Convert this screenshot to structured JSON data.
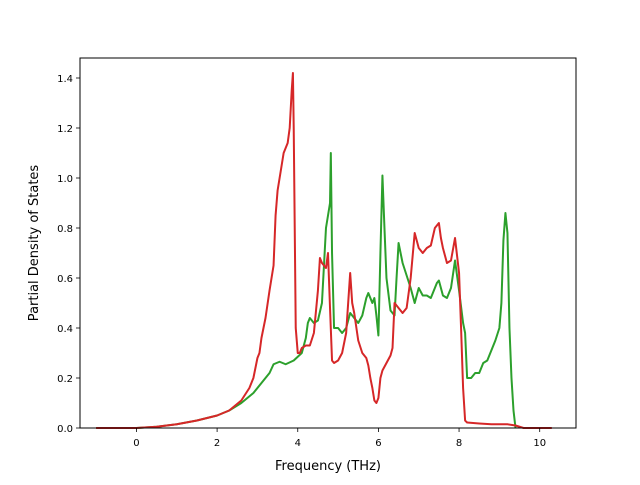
{
  "chart_data": {
    "type": "line",
    "xlabel": "Frequency (THz)",
    "ylabel": "Partial Density of States",
    "xlim": [
      -1.4,
      10.9
    ],
    "ylim": [
      0,
      1.48
    ],
    "xticks": [
      0,
      2,
      4,
      6,
      8,
      10
    ],
    "yticks": [
      0.0,
      0.2,
      0.4,
      0.6,
      0.8,
      1.0,
      1.2,
      1.4
    ],
    "xtick_labels": [
      "0",
      "2",
      "4",
      "6",
      "8",
      "10"
    ],
    "ytick_labels": [
      "0.0",
      "0.2",
      "0.4",
      "0.6",
      "0.8",
      "1.0",
      "1.2",
      "1.4"
    ],
    "grid": false,
    "series": [
      {
        "color": "#2ca02c",
        "x": [
          -1.0,
          -0.5,
          0.0,
          0.5,
          1.0,
          1.5,
          2.0,
          2.3,
          2.6,
          2.9,
          3.1,
          3.3,
          3.4,
          3.55,
          3.7,
          3.9,
          4.1,
          4.2,
          4.25,
          4.3,
          4.4,
          4.5,
          4.6,
          4.65,
          4.7,
          4.75,
          4.8,
          4.82,
          4.85,
          4.9,
          5.0,
          5.1,
          5.2,
          5.3,
          5.4,
          5.5,
          5.6,
          5.7,
          5.75,
          5.8,
          5.85,
          5.9,
          5.95,
          6.0,
          6.05,
          6.1,
          6.15,
          6.2,
          6.3,
          6.4,
          6.45,
          6.5,
          6.6,
          6.8,
          6.9,
          7.0,
          7.1,
          7.2,
          7.3,
          7.45,
          7.5,
          7.6,
          7.7,
          7.8,
          7.9,
          8.0,
          8.1,
          8.15,
          8.2,
          8.3,
          8.4,
          8.5,
          8.6,
          8.7,
          8.8,
          8.9,
          9.0,
          9.05,
          9.1,
          9.15,
          9.2,
          9.25,
          9.3,
          9.35,
          9.4
        ],
        "y": [
          0.0,
          0.0,
          0.0,
          0.005,
          0.015,
          0.03,
          0.05,
          0.07,
          0.1,
          0.14,
          0.18,
          0.22,
          0.255,
          0.265,
          0.255,
          0.27,
          0.3,
          0.36,
          0.42,
          0.44,
          0.42,
          0.43,
          0.5,
          0.65,
          0.8,
          0.85,
          0.9,
          1.1,
          0.7,
          0.4,
          0.4,
          0.38,
          0.4,
          0.46,
          0.44,
          0.42,
          0.45,
          0.52,
          0.54,
          0.52,
          0.5,
          0.52,
          0.45,
          0.37,
          0.7,
          1.01,
          0.8,
          0.6,
          0.47,
          0.45,
          0.6,
          0.74,
          0.66,
          0.56,
          0.5,
          0.56,
          0.53,
          0.53,
          0.52,
          0.58,
          0.59,
          0.53,
          0.52,
          0.56,
          0.67,
          0.55,
          0.42,
          0.38,
          0.2,
          0.2,
          0.22,
          0.22,
          0.26,
          0.27,
          0.31,
          0.35,
          0.4,
          0.5,
          0.75,
          0.86,
          0.78,
          0.4,
          0.2,
          0.07,
          0.0
        ]
      },
      {
        "color": "#d62728",
        "x": [
          -1.0,
          -0.5,
          0.0,
          0.5,
          1.0,
          1.5,
          2.0,
          2.3,
          2.6,
          2.8,
          2.9,
          3.0,
          3.05,
          3.1,
          3.2,
          3.3,
          3.4,
          3.45,
          3.5,
          3.55,
          3.6,
          3.65,
          3.7,
          3.75,
          3.8,
          3.85,
          3.88,
          3.9,
          3.95,
          4.0,
          4.05,
          4.1,
          4.2,
          4.3,
          4.4,
          4.5,
          4.55,
          4.6,
          4.7,
          4.75,
          4.8,
          4.85,
          4.9,
          5.0,
          5.1,
          5.2,
          5.3,
          5.35,
          5.4,
          5.5,
          5.6,
          5.7,
          5.75,
          5.8,
          5.85,
          5.9,
          5.95,
          6.0,
          6.05,
          6.1,
          6.2,
          6.3,
          6.35,
          6.4,
          6.5,
          6.6,
          6.7,
          6.8,
          6.9,
          7.0,
          7.1,
          7.2,
          7.3,
          7.4,
          7.5,
          7.55,
          7.6,
          7.7,
          7.8,
          7.9,
          8.0,
          8.05,
          8.1,
          8.15,
          8.2,
          8.5,
          8.8,
          9.0,
          9.2,
          9.4,
          9.6,
          9.8,
          10.0,
          10.3
        ],
        "y": [
          0.0,
          0.0,
          0.0,
          0.005,
          0.015,
          0.03,
          0.05,
          0.07,
          0.11,
          0.16,
          0.2,
          0.28,
          0.3,
          0.36,
          0.44,
          0.55,
          0.65,
          0.85,
          0.95,
          1.0,
          1.05,
          1.1,
          1.12,
          1.14,
          1.2,
          1.35,
          1.42,
          1.2,
          0.4,
          0.3,
          0.3,
          0.32,
          0.33,
          0.33,
          0.38,
          0.55,
          0.68,
          0.66,
          0.64,
          0.7,
          0.48,
          0.27,
          0.26,
          0.27,
          0.3,
          0.38,
          0.62,
          0.5,
          0.46,
          0.35,
          0.3,
          0.28,
          0.25,
          0.2,
          0.16,
          0.11,
          0.1,
          0.12,
          0.2,
          0.23,
          0.26,
          0.29,
          0.32,
          0.5,
          0.48,
          0.46,
          0.48,
          0.6,
          0.78,
          0.72,
          0.7,
          0.72,
          0.73,
          0.8,
          0.82,
          0.76,
          0.72,
          0.66,
          0.67,
          0.76,
          0.62,
          0.4,
          0.16,
          0.03,
          0.022,
          0.018,
          0.015,
          0.015,
          0.015,
          0.01,
          0.0,
          0.0,
          0.0,
          0.0
        ]
      }
    ]
  }
}
